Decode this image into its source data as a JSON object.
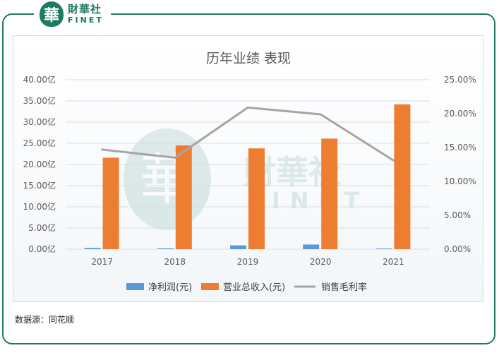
{
  "brand": {
    "mark": "華",
    "name_cn": "財華社",
    "name_en": "FINET"
  },
  "source_note": "数据源：同花顺",
  "chart_data": {
    "type": "bar",
    "title": "历年业绩 表现",
    "categories": [
      "2017",
      "2018",
      "2019",
      "2020",
      "2021"
    ],
    "series": [
      {
        "name": "净利润(元)",
        "type": "bar",
        "axis": "left",
        "color": "#5b9bd5",
        "values": [
          0.3,
          0.2,
          0.9,
          1.1,
          0.15
        ]
      },
      {
        "name": "营业总收入(元)",
        "type": "bar",
        "axis": "left",
        "color": "#ed7d31",
        "values": [
          21.6,
          24.5,
          23.8,
          26.1,
          34.2
        ]
      },
      {
        "name": "销售毛利率",
        "type": "line",
        "axis": "right",
        "color": "#a5a5a5",
        "values": [
          14.7,
          13.5,
          20.9,
          19.9,
          13.1
        ]
      }
    ],
    "y_left": {
      "min": 0,
      "max": 40,
      "step": 5,
      "tick_labels": [
        "0.00亿",
        "5.00亿",
        "10.00亿",
        "15.00亿",
        "20.00亿",
        "25.00亿",
        "30.00亿",
        "35.00亿",
        "40.00亿"
      ]
    },
    "y_right": {
      "min": 0,
      "max": 25,
      "step": 5,
      "tick_labels": [
        "0.00%",
        "5.00%",
        "10.00%",
        "15.00%",
        "20.00%",
        "25.00%"
      ]
    },
    "grid": true,
    "legend_position": "bottom",
    "watermark": {
      "mark": "華",
      "name_cn": "財華社",
      "name_en": "FINET"
    }
  }
}
